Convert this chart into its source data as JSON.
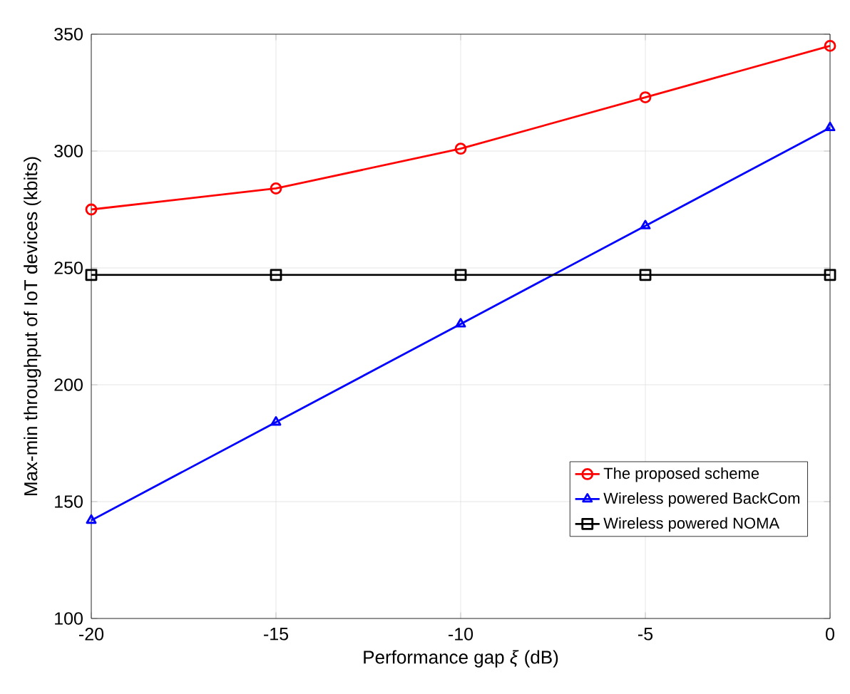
{
  "chart_data": {
    "type": "line",
    "xlabel": "Performance gap *ξ* (dB)",
    "ylabel": "Max-min throughput  of IoT devices  (kbits)",
    "x": [
      -20,
      -15,
      -10,
      -5,
      0
    ],
    "series": [
      {
        "name": "The proposed scheme",
        "color": "#ff0000",
        "marker": "circle",
        "values": [
          275,
          284,
          301,
          323,
          345
        ]
      },
      {
        "name": "Wireless powered BackCom",
        "color": "#0000ff",
        "marker": "triangle",
        "values": [
          142,
          184,
          226,
          268,
          310
        ]
      },
      {
        "name": "Wireless powered NOMA",
        "color": "#000000",
        "marker": "square",
        "values": [
          247,
          247,
          247,
          247,
          247
        ]
      }
    ],
    "xlim": [
      -20,
      0
    ],
    "ylim": [
      100,
      350
    ],
    "xticks": [
      -20,
      -15,
      -10,
      -5,
      0
    ],
    "yticks": [
      100,
      150,
      200,
      250,
      300,
      350
    ],
    "grid": true,
    "legend": "bottom right",
    "line_style": "solid"
  }
}
